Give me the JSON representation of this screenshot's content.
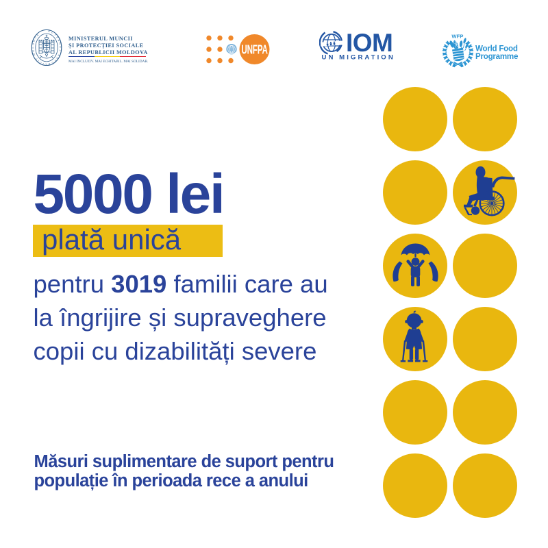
{
  "colors": {
    "background": "#ffffff",
    "text_blue": "#2A439A",
    "icon_blue": "#1F3E92",
    "circle_yellow": "#E9B70F",
    "highlight_yellow": "#ECBD14",
    "ministry_blue": "#33618F",
    "flag_blue": "#2846A0",
    "flag_yellow": "#F6CE13",
    "flag_red": "#DF2B36",
    "unfpa_orange": "#F0882A",
    "un_emblem_blue": "#7FB4DC",
    "iom_blue": "#2356A4",
    "wfp_blue": "#2C95D3"
  },
  "header": {
    "ministry": {
      "seal_text": "GUVERNUL REPUBLICII MOLDOVA",
      "name_line1": "MINISTERUL MUNCII",
      "name_line2": "ȘI PROTECȚIEI SOCIALE",
      "name_line3": "AL REPUBLICII MOLDOVA",
      "motto": "MAI INCLUZIV. MAI ECHITABIL. MAI SOLIDAR."
    },
    "unfpa": {
      "wordmark": "UNFPA"
    },
    "iom": {
      "wordmark": "IOM",
      "subtitle": "UN MIGRATION"
    },
    "wfp": {
      "acronym": "WFP",
      "name_line1": "World Food",
      "name_line2": "Programme"
    }
  },
  "main": {
    "amount": "5000 lei",
    "payment_type": "plată unică",
    "description": {
      "line1_pre": "pentru ",
      "line1_number": "3019",
      "line1_post": " familii care au",
      "line2": "la îngrijire și supraveghere",
      "line3": "copii cu dizabilități severe"
    },
    "note_line1": "Măsuri suplimentare de suport pentru",
    "note_line2": "populație în perioada rece a anului"
  },
  "circle_grid": {
    "columns": 2,
    "rows": 6,
    "cells": [
      {
        "icon": null
      },
      {
        "icon": null
      },
      {
        "icon": null
      },
      {
        "icon": "wheelchair-user"
      },
      {
        "icon": "child-umbrella-hands"
      },
      {
        "icon": null
      },
      {
        "icon": "child-with-canes"
      },
      {
        "icon": null
      },
      {
        "icon": null
      },
      {
        "icon": null
      },
      {
        "icon": null
      },
      {
        "icon": null
      }
    ]
  }
}
